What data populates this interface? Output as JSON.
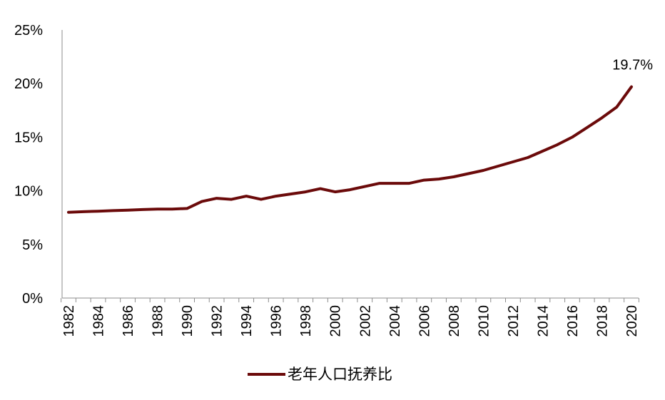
{
  "chart_data": {
    "type": "line",
    "title": "",
    "xlabel": "",
    "ylabel": "",
    "ylim": [
      0,
      25
    ],
    "yticks": [
      "0%",
      "5%",
      "10%",
      "15%",
      "20%",
      "25%"
    ],
    "ytick_values": [
      0,
      5,
      10,
      15,
      20,
      25
    ],
    "x_tick_labels": [
      "1982",
      "1984",
      "1986",
      "1988",
      "1990",
      "1992",
      "1994",
      "1996",
      "1998",
      "2000",
      "2002",
      "2004",
      "2006",
      "2008",
      "2010",
      "2012",
      "2014",
      "2016",
      "2018",
      "2020"
    ],
    "grid": false,
    "legend_position": "bottom",
    "series": [
      {
        "name": "老年人口抚养比",
        "color": "#6b0a0a",
        "x": [
          1982,
          1983,
          1984,
          1985,
          1986,
          1987,
          1988,
          1989,
          1990,
          1991,
          1992,
          1993,
          1994,
          1995,
          1996,
          1997,
          1998,
          1999,
          2000,
          2001,
          2002,
          2003,
          2004,
          2005,
          2006,
          2007,
          2008,
          2009,
          2010,
          2011,
          2012,
          2013,
          2014,
          2015,
          2016,
          2017,
          2018,
          2019,
          2020
        ],
        "values": [
          8.0,
          8.05,
          8.1,
          8.15,
          8.2,
          8.25,
          8.3,
          8.3,
          8.35,
          9.0,
          9.3,
          9.2,
          9.5,
          9.2,
          9.5,
          9.7,
          9.9,
          10.2,
          9.9,
          10.1,
          10.4,
          10.7,
          10.7,
          10.7,
          11.0,
          11.1,
          11.3,
          11.6,
          11.9,
          12.3,
          12.7,
          13.1,
          13.7,
          14.3,
          15.0,
          15.9,
          16.8,
          17.8,
          19.7
        ]
      }
    ],
    "annotations": [
      {
        "x": 2020,
        "text": "19.7%"
      }
    ]
  }
}
